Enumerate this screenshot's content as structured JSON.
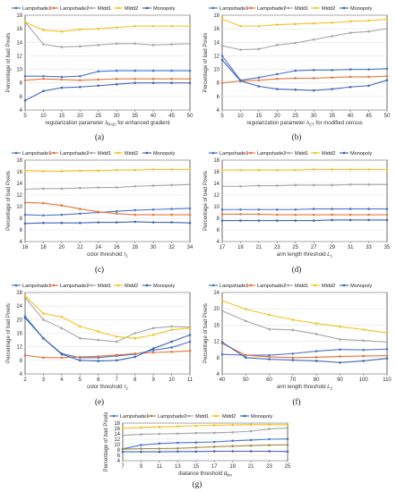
{
  "figure": {
    "colors": {
      "Lampshade1": "#4b76c9",
      "Lampshade2": "#e7763f",
      "Midd1": "#a6a6a6",
      "Midd2": "#f2c225",
      "Monopoly": "#3f66b5"
    },
    "colors_g": {
      "Lampshade1": "#4b76c9",
      "Lampshade2": "#a38b47",
      "Midd1": "#a6a6a6",
      "Midd2": "#f2c225",
      "Monopoly": "#3f66b5"
    }
  },
  "chart_data": [
    {
      "id": "a",
      "type": "line",
      "caption": "(a)",
      "xlabel": "regularization parameter λ_{RAD} for enhanced gradient",
      "ylabel": "Percentage of bad Pixels",
      "x": [
        5,
        10,
        15,
        20,
        25,
        30,
        35,
        40,
        45,
        50
      ],
      "xlim": [
        5,
        50
      ],
      "xticks": [
        "5",
        "10",
        "15",
        "20",
        "25",
        "30",
        "35",
        "40",
        "45",
        "50"
      ],
      "ylim": [
        4,
        18
      ],
      "yticks": [
        "4",
        "6",
        "8",
        "10",
        "12",
        "14",
        "16",
        "18"
      ],
      "series": [
        {
          "name": "Lampshade1",
          "values": [
            9.0,
            9.0,
            8.9,
            9.0,
            9.7,
            9.8,
            9.8,
            9.8,
            9.8,
            9.8
          ]
        },
        {
          "name": "Lampshade2",
          "values": [
            8.4,
            8.6,
            8.5,
            8.4,
            8.5,
            8.6,
            8.6,
            8.6,
            8.6,
            8.6
          ]
        },
        {
          "name": "Midd1",
          "values": [
            17.0,
            13.7,
            13.3,
            13.4,
            13.6,
            13.8,
            13.8,
            13.6,
            13.7,
            13.8
          ]
        },
        {
          "name": "Midd2",
          "values": [
            17.0,
            15.8,
            15.6,
            15.9,
            16.0,
            16.2,
            16.4,
            16.4,
            16.4,
            16.4
          ]
        },
        {
          "name": "Monopoly",
          "values": [
            5.4,
            6.8,
            7.3,
            7.4,
            7.6,
            7.8,
            8.0,
            8.0,
            8.0,
            8.0
          ]
        }
      ]
    },
    {
      "id": "b",
      "type": "line",
      "caption": "(b)",
      "xlabel": "regularization parameter λ_{CT} for modified census",
      "ylabel": "Percentage of bad Pixels",
      "x": [
        5,
        10,
        15,
        20,
        25,
        30,
        35,
        40,
        45,
        50
      ],
      "xlim": [
        5,
        50
      ],
      "xticks": [
        "5",
        "10",
        "15",
        "20",
        "25",
        "30",
        "35",
        "40",
        "45",
        "50"
      ],
      "ylim": [
        4,
        18
      ],
      "yticks": [
        "4",
        "6",
        "8",
        "10",
        "12",
        "14",
        "16",
        "18"
      ],
      "series": [
        {
          "name": "Lampshade1",
          "values": [
            12.0,
            8.4,
            8.8,
            9.3,
            9.8,
            9.9,
            9.9,
            10.0,
            10.0,
            10.1
          ]
        },
        {
          "name": "Lampshade2",
          "values": [
            8.0,
            8.3,
            8.4,
            8.6,
            8.7,
            8.7,
            8.8,
            8.9,
            8.9,
            9.0
          ]
        },
        {
          "name": "Midd1",
          "values": [
            13.5,
            12.9,
            13.0,
            13.6,
            13.9,
            14.4,
            14.9,
            15.4,
            15.6,
            16.0
          ]
        },
        {
          "name": "Midd2",
          "values": [
            17.4,
            16.4,
            16.4,
            16.6,
            16.7,
            16.8,
            16.9,
            17.1,
            17.2,
            17.4
          ]
        },
        {
          "name": "Monopoly",
          "values": [
            11.4,
            8.3,
            7.5,
            7.1,
            7.0,
            6.9,
            7.1,
            7.4,
            7.6,
            8.4
          ]
        }
      ]
    },
    {
      "id": "c",
      "type": "line",
      "caption": "(c)",
      "xlabel": "color threshold τ1",
      "ylabel": "Percentage of bad Pixels",
      "x": [
        16,
        18,
        20,
        22,
        24,
        26,
        28,
        30,
        32,
        34
      ],
      "xlim": [
        16,
        34
      ],
      "xticks": [
        "16",
        "18",
        "20",
        "22",
        "24",
        "26",
        "28",
        "30",
        "32",
        "34"
      ],
      "ylim": [
        4,
        18
      ],
      "yticks": [
        "4",
        "6",
        "8",
        "10",
        "12",
        "14",
        "16",
        "18"
      ],
      "series": [
        {
          "name": "Lampshade1",
          "values": [
            8.6,
            8.5,
            8.6,
            8.8,
            9.0,
            9.2,
            9.4,
            9.5,
            9.6,
            9.7
          ]
        },
        {
          "name": "Lampshade2",
          "values": [
            10.7,
            10.6,
            10.2,
            9.6,
            9.1,
            8.8,
            8.6,
            8.6,
            8.6,
            8.6
          ]
        },
        {
          "name": "Midd1",
          "values": [
            13.0,
            13.1,
            13.1,
            13.2,
            13.3,
            13.3,
            13.5,
            13.6,
            13.7,
            13.8
          ]
        },
        {
          "name": "Midd2",
          "values": [
            16.2,
            16.1,
            16.1,
            16.2,
            16.2,
            16.3,
            16.3,
            16.4,
            16.4,
            16.4
          ]
        },
        {
          "name": "Monopoly",
          "values": [
            7.1,
            7.2,
            7.2,
            7.2,
            7.3,
            7.3,
            7.4,
            7.3,
            7.3,
            7.2
          ]
        }
      ]
    },
    {
      "id": "d",
      "type": "line",
      "caption": "(d)",
      "xlabel": "arm length threshold L1",
      "ylabel": "Percentage of bad Pixels",
      "x": [
        17,
        19,
        21,
        23,
        25,
        27,
        29,
        31,
        33,
        35
      ],
      "xlim": [
        17,
        35
      ],
      "xticks": [
        "17",
        "19",
        "21",
        "23",
        "25",
        "27",
        "29",
        "31",
        "33",
        "35"
      ],
      "ylim": [
        4,
        18
      ],
      "yticks": [
        "4",
        "6",
        "8",
        "10",
        "12",
        "14",
        "16",
        "18"
      ],
      "series": [
        {
          "name": "Lampshade1",
          "values": [
            9.5,
            9.5,
            9.5,
            9.5,
            9.5,
            9.6,
            9.6,
            9.6,
            9.6,
            9.6
          ]
        },
        {
          "name": "Lampshade2",
          "values": [
            8.7,
            8.7,
            8.7,
            8.6,
            8.6,
            8.6,
            8.6,
            8.6,
            8.6,
            8.6
          ]
        },
        {
          "name": "Midd1",
          "values": [
            13.5,
            13.5,
            13.6,
            13.6,
            13.7,
            13.7,
            13.7,
            13.8,
            13.8,
            13.8
          ]
        },
        {
          "name": "Midd2",
          "values": [
            16.3,
            16.3,
            16.3,
            16.3,
            16.3,
            16.4,
            16.4,
            16.4,
            16.4,
            16.4
          ]
        },
        {
          "name": "Monopoly",
          "values": [
            7.6,
            7.6,
            7.6,
            7.6,
            7.6,
            7.6,
            7.7,
            7.7,
            7.7,
            7.7
          ]
        }
      ]
    },
    {
      "id": "e",
      "type": "line",
      "caption": "(e)",
      "xlabel": "color threshold τ2",
      "ylabel": "Percentage of bad Pixels",
      "x": [
        2,
        3,
        4,
        5,
        6,
        7,
        8,
        9,
        10,
        11
      ],
      "xlim": [
        2,
        11
      ],
      "xticks": [
        "2",
        "3",
        "4",
        "5",
        "6",
        "7",
        "8",
        "9",
        "10",
        "11"
      ],
      "ylim": [
        4,
        28
      ],
      "yticks": [
        "4",
        "8",
        "12",
        "16",
        "20",
        "24",
        "28"
      ],
      "series": [
        {
          "name": "Lampshade1",
          "values": [
            21.0,
            14.5,
            10.0,
            8.8,
            8.8,
            9.3,
            9.8,
            11.0,
            11.8,
            13.5
          ]
        },
        {
          "name": "Lampshade2",
          "values": [
            9.5,
            8.8,
            8.8,
            9.0,
            9.2,
            9.6,
            10.0,
            10.3,
            10.5,
            10.8
          ]
        },
        {
          "name": "Midd1",
          "values": [
            26.5,
            20.0,
            17.5,
            14.5,
            14.0,
            13.5,
            16.0,
            17.5,
            18.0,
            17.8
          ]
        },
        {
          "name": "Midd2",
          "values": [
            27.0,
            21.8,
            20.8,
            18.0,
            16.5,
            15.0,
            14.5,
            15.5,
            17.0,
            17.5
          ]
        },
        {
          "name": "Monopoly",
          "values": [
            20.5,
            14.5,
            9.8,
            8.0,
            7.8,
            8.0,
            9.0,
            11.5,
            13.5,
            15.5
          ]
        }
      ]
    },
    {
      "id": "f",
      "type": "line",
      "caption": "(f)",
      "xlabel": "arm length threshold L2",
      "ylabel": "Percentage of bad Pixels",
      "x": [
        40,
        50,
        60,
        70,
        80,
        90,
        100,
        110
      ],
      "xlim": [
        40,
        110
      ],
      "xticks": [
        "40",
        "50",
        "60",
        "70",
        "80",
        "90",
        "100",
        "110"
      ],
      "ylim": [
        4,
        24
      ],
      "yticks": [
        "4",
        "8",
        "12",
        "16",
        "20",
        "24"
      ],
      "series": [
        {
          "name": "Lampshade1",
          "values": [
            8.8,
            8.6,
            8.6,
            9.0,
            9.6,
            10.0,
            9.9,
            10.1
          ]
        },
        {
          "name": "Lampshade2",
          "values": [
            11.5,
            8.6,
            8.2,
            8.0,
            8.1,
            8.3,
            8.4,
            8.5
          ]
        },
        {
          "name": "Midd1",
          "values": [
            19.5,
            17.0,
            15.0,
            14.8,
            13.8,
            12.5,
            12.2,
            11.8
          ]
        },
        {
          "name": "Midd2",
          "values": [
            22.0,
            19.9,
            18.5,
            17.3,
            16.4,
            15.6,
            14.9,
            14.1
          ]
        },
        {
          "name": "Monopoly",
          "values": [
            11.8,
            8.0,
            7.6,
            7.4,
            7.2,
            6.8,
            7.2,
            7.8
          ]
        }
      ]
    },
    {
      "id": "g",
      "type": "line",
      "caption": "(g)",
      "xlabel": "diatance threshold d_lim",
      "ylabel": "Percentage of bad Pixels",
      "x": [
        7,
        9,
        11,
        13,
        15,
        17,
        19,
        21,
        23,
        25
      ],
      "xlim": [
        7,
        25
      ],
      "xticks": [
        "7",
        "9",
        "11",
        "13",
        "15",
        "17",
        "19",
        "21",
        "23",
        "25"
      ],
      "ylim": [
        4,
        18
      ],
      "yticks": [
        "4",
        "6",
        "8",
        "10",
        "12",
        "14",
        "16",
        "18"
      ],
      "series": [
        {
          "name": "Lampshade1",
          "values": [
            8.4,
            9.8,
            10.4,
            10.7,
            10.8,
            11.0,
            11.4,
            11.7,
            12.0,
            12.1
          ]
        },
        {
          "name": "Lampshade2",
          "values": [
            8.3,
            8.5,
            8.5,
            8.6,
            8.9,
            9.2,
            9.4,
            9.6,
            9.8,
            9.9
          ]
        },
        {
          "name": "Midd1",
          "values": [
            13.4,
            13.8,
            14.0,
            14.1,
            14.3,
            14.4,
            14.6,
            15.0,
            15.8,
            16.2
          ]
        },
        {
          "name": "Midd2",
          "values": [
            16.1,
            16.4,
            16.6,
            16.8,
            17.0,
            17.2,
            17.3,
            17.4,
            17.4,
            17.4
          ]
        },
        {
          "name": "Monopoly",
          "values": [
            7.3,
            7.3,
            7.3,
            7.4,
            7.4,
            7.5,
            7.5,
            7.5,
            7.5,
            7.4
          ]
        }
      ]
    }
  ]
}
